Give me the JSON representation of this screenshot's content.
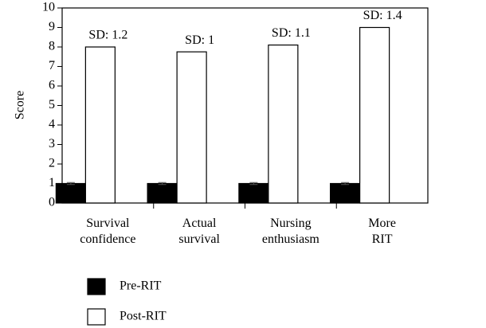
{
  "chart_data": {
    "type": "bar",
    "y_label": "Score",
    "categories": [
      "Survival confidence",
      "Actual survival",
      "Nursing enthusiasm",
      "More RIT"
    ],
    "series": [
      {
        "name": "Pre-RIT",
        "color": "#000000",
        "values": [
          1.0,
          1.0,
          1.0,
          1.0
        ],
        "errors": [
          0.05,
          0.05,
          0.05,
          0.05
        ]
      },
      {
        "name": "Post-RIT",
        "color": "#ffffff",
        "values": [
          8.0,
          7.75,
          8.1,
          9.0
        ],
        "annotations": [
          "SD: 1.2",
          "SD: 1",
          "SD: 1.1",
          "SD: 1.4"
        ]
      }
    ],
    "ylim": [
      0,
      10
    ],
    "yticks": [
      0,
      1,
      2,
      3,
      4,
      5,
      6,
      7,
      8,
      9,
      10
    ],
    "grid": false,
    "legend": "bottom"
  }
}
